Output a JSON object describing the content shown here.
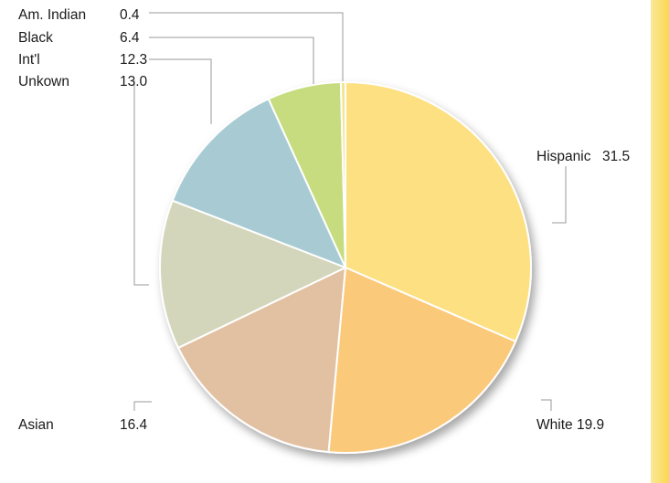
{
  "chart_data": {
    "type": "pie",
    "title": "",
    "slices": [
      {
        "label": "Hispanic",
        "value": 31.5,
        "value_text": "31.5",
        "color": "#fde081"
      },
      {
        "label": "White",
        "value": 19.9,
        "value_text": "19.9",
        "color": "#fbc97a"
      },
      {
        "label": "Asian",
        "value": 16.4,
        "value_text": "16.4",
        "color": "#e2c1a3"
      },
      {
        "label": "Unkown",
        "value": 13.0,
        "value_text": "13.0",
        "color": "#d3d6bb"
      },
      {
        "label": "Int'l",
        "value": 12.3,
        "value_text": "12.3",
        "color": "#a8cbd3"
      },
      {
        "label": "Black",
        "value": 6.4,
        "value_text": "6.4",
        "color": "#c6dc7e"
      },
      {
        "label": "Am. Indian",
        "value": 0.4,
        "value_text": "0.4",
        "color": "#f1e690"
      }
    ],
    "start": "12 o'clock",
    "direction": "clockwise",
    "legend": "none",
    "accent_stripe_color": "#f9d84f"
  }
}
